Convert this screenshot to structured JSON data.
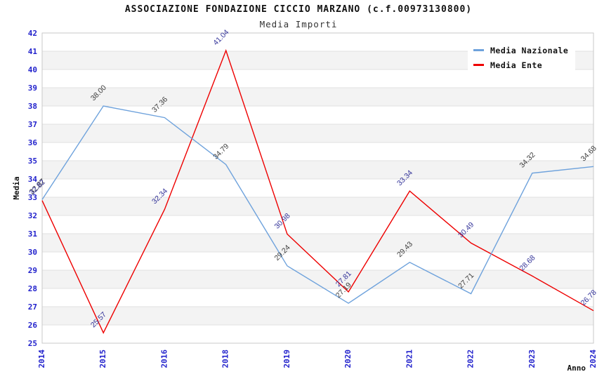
{
  "header": {
    "title": "ASSOCIAZIONE FONDAZIONE CICCIO MARZANO (c.f.00973130800)",
    "subtitle": "Media Importi"
  },
  "chart_data": {
    "type": "line",
    "x": [
      "2014",
      "2015",
      "2016",
      "2018",
      "2019",
      "2020",
      "2021",
      "2022",
      "2023",
      "2024"
    ],
    "series": [
      {
        "name": "Media Nazionale",
        "color": "#6ea2dc",
        "label_color": "#3d3d3d",
        "values": [
          32.87,
          38.0,
          37.36,
          34.79,
          29.24,
          27.19,
          29.43,
          27.71,
          34.32,
          34.68
        ]
      },
      {
        "name": "Media Ente",
        "color": "#ee0000",
        "label_color": "#333399",
        "values": [
          32.82,
          25.57,
          32.34,
          41.04,
          30.98,
          27.81,
          33.34,
          30.49,
          28.68,
          26.78
        ]
      }
    ],
    "xlabel": "Anno",
    "ylabel": "Media",
    "ylim": [
      25,
      42
    ],
    "ytick_step": 1,
    "grid": true,
    "legend_position": "top-right",
    "tick_label_color": "#2222cc",
    "band_colors": [
      "#ffffff",
      "#f3f3f3"
    ],
    "plot_border_color": "#c9c9c9",
    "grid_line_color": "#e0e0e0"
  },
  "legend": {
    "items": [
      {
        "label": "Media Nazionale"
      },
      {
        "label": "Media Ente"
      }
    ]
  }
}
